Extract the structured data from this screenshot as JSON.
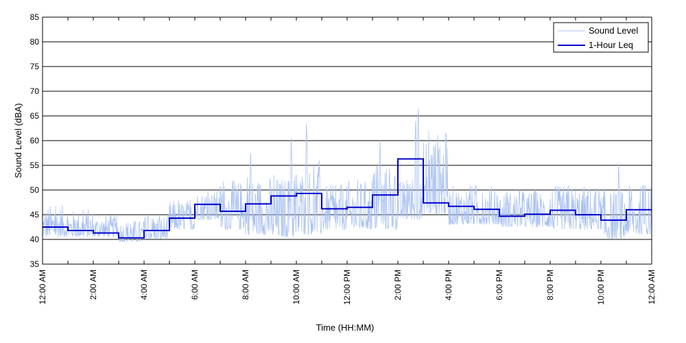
{
  "chart_data": {
    "type": "line",
    "xlabel": "Time (HH:MM)",
    "ylabel": "Sound Level (dBA)",
    "ylim": [
      35,
      85
    ],
    "yticks": [
      35,
      40,
      45,
      50,
      55,
      60,
      65,
      70,
      75,
      80,
      85
    ],
    "xlim_hours": [
      0,
      24
    ],
    "x_tick_labels": [
      "12:00 AM",
      "2:00 AM",
      "4:00 AM",
      "6:00 AM",
      "8:00 AM",
      "10:00 AM",
      "12:00 PM",
      "2:00 PM",
      "4:00 PM",
      "6:00 PM",
      "8:00 PM",
      "10:00 PM",
      "12:00 AM"
    ],
    "grid": "horizontal",
    "legend_position": "top-right",
    "series": [
      {
        "name": "Sound Level",
        "color": "#a9c1f2",
        "style": "thin line",
        "hourly_typical_range": [
          [
            40.5,
            47
          ],
          [
            40.5,
            46
          ],
          [
            40.5,
            45
          ],
          [
            39.5,
            44
          ],
          [
            40,
            45
          ],
          [
            42,
            48
          ],
          [
            44,
            50
          ],
          [
            42,
            52
          ],
          [
            41,
            53
          ],
          [
            40.5,
            53
          ],
          [
            41,
            55
          ],
          [
            42,
            51
          ],
          [
            42,
            52
          ],
          [
            42,
            55
          ],
          [
            44,
            52
          ],
          [
            45,
            62
          ],
          [
            43,
            51
          ],
          [
            43,
            51
          ],
          [
            42.5,
            50
          ],
          [
            42.5,
            50
          ],
          [
            42,
            51
          ],
          [
            42,
            51
          ],
          [
            40,
            50
          ],
          [
            41,
            51
          ]
        ],
        "spikes": [
          {
            "hour": 9.8,
            "value": 60.5
          },
          {
            "hour": 10.4,
            "value": 63.5
          },
          {
            "hour": 8.2,
            "value": 57.5
          },
          {
            "hour": 13.3,
            "value": 60
          },
          {
            "hour": 14.8,
            "value": 66.5
          },
          {
            "hour": 14.7,
            "value": 64
          },
          {
            "hour": 22.7,
            "value": 55.5
          },
          {
            "hour": 10.9,
            "value": 56
          }
        ]
      },
      {
        "name": "1-Hour Leq",
        "color": "#0000cc",
        "style": "step",
        "hours": [
          0,
          1,
          2,
          3,
          4,
          5,
          6,
          7,
          8,
          9,
          10,
          11,
          12,
          13,
          14,
          15,
          16,
          17,
          18,
          19,
          20,
          21,
          22,
          23
        ],
        "values": [
          42.5,
          41.8,
          41.3,
          40.3,
          41.8,
          44.3,
          47.1,
          45.7,
          47.2,
          48.8,
          49.3,
          46.2,
          46.5,
          49,
          56.3,
          47.4,
          46.7,
          46.1,
          44.7,
          45.1,
          45.9,
          45,
          43.9,
          46
        ]
      }
    ]
  }
}
